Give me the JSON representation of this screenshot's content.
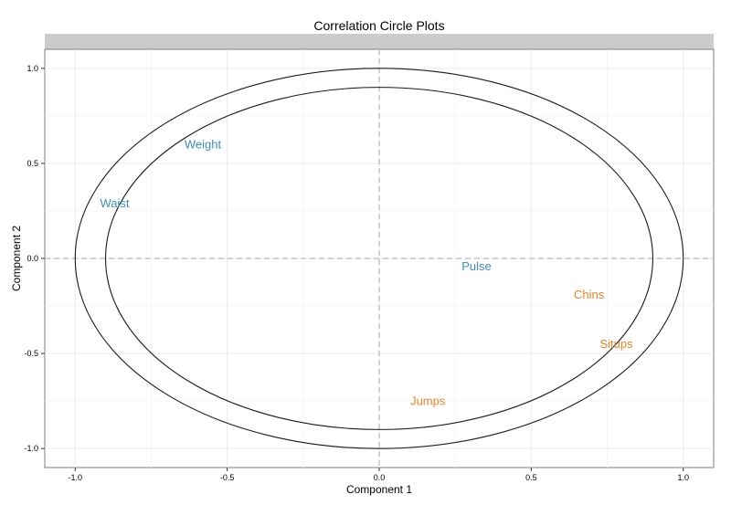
{
  "chart_data": {
    "type": "scatter",
    "title": "Correlation Circle Plots",
    "xlabel": "Component 1",
    "ylabel": "Component 2",
    "xlim": [
      -1.1,
      1.1
    ],
    "ylim": [
      -1.1,
      1.1
    ],
    "x_ticks": [
      -1.0,
      -0.5,
      0.0,
      0.5,
      1.0
    ],
    "y_ticks": [
      -1.0,
      -0.5,
      0.0,
      0.5,
      1.0
    ],
    "x_tick_labels": [
      "-1.0",
      "-0.5",
      "0.0",
      "0.5",
      "1.0"
    ],
    "y_tick_labels": [
      "-1.0",
      "-0.5",
      "0.0",
      "0.5",
      "1.0"
    ],
    "grid": true,
    "reference_lines": [
      0,
      0
    ],
    "circle_radii": [
      1.0,
      0.9
    ],
    "facet_strip": "",
    "series": [
      {
        "color": "#3d8fc0",
        "points": [
          {
            "label": "Weight",
            "x": -0.58,
            "y": 0.6
          },
          {
            "label": "Waist",
            "x": -0.87,
            "y": 0.29
          },
          {
            "label": "Pulse",
            "x": 0.32,
            "y": -0.04
          }
        ]
      },
      {
        "color": "#e5862a",
        "points": [
          {
            "label": "Chins",
            "x": 0.69,
            "y": -0.19
          },
          {
            "label": "Situps",
            "x": 0.78,
            "y": -0.45
          },
          {
            "label": "Jumps",
            "x": 0.16,
            "y": -0.75
          }
        ]
      }
    ]
  }
}
